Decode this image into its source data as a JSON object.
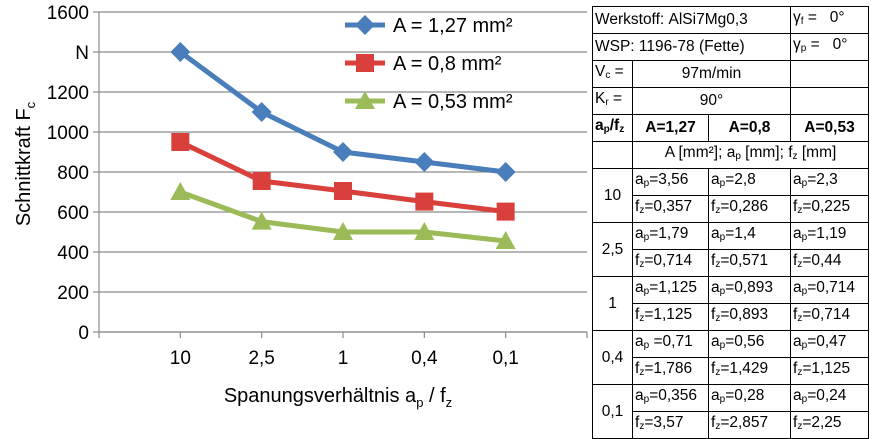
{
  "chart_data": {
    "type": "line",
    "categories": [
      "10",
      "2,5",
      "1",
      "0,4",
      "0,1"
    ],
    "series": [
      {
        "name": "A = 1,27 mm²",
        "values": [
          1400,
          1100,
          900,
          850,
          800
        ],
        "color": "#4a7ebb",
        "marker": "diamond"
      },
      {
        "name": "A = 0,8 mm²",
        "values": [
          950,
          755,
          705,
          652,
          602
        ],
        "color": "#d9403b",
        "marker": "square"
      },
      {
        "name": "A = 0,53 mm²",
        "values": [
          700,
          552,
          500,
          500,
          455
        ],
        "color": "#9bbb59",
        "marker": "triangle"
      }
    ],
    "title": "",
    "xlabel": "Spanungsverhältnis ap / fz",
    "ylabel": "Schnittkraft Fc",
    "y_ticks": [
      "0",
      "200",
      "400",
      "600",
      "800",
      "1000",
      "1200",
      "N",
      "1600"
    ],
    "ylim": [
      0,
      1600
    ],
    "grid": true,
    "legend_position": "top-right"
  },
  "table": {
    "werkstoff_label": "Werkstoff:",
    "werkstoff_value": "AlSi7Mg0,3",
    "gamma_f": "γf =",
    "gamma_f_value": "0°",
    "wsp_label": "WSP:",
    "wsp_value": "1196-78 (Fette)",
    "gamma_p": "γp =",
    "gamma_p_value": "0°",
    "vc_label": "Vc =",
    "vc_value": "97m/min",
    "kr_label": "Kr =",
    "kr_value": "90°",
    "col_ratio": "ap/fz",
    "col_a1": "A=1,27",
    "col_a2": "A=0,8",
    "col_a3": "A=0,53",
    "units": "A [mm²]; ap [mm]; fz [mm]",
    "rows": [
      {
        "ratio": "10",
        "ap": [
          "ap=3,56",
          "ap=2,8",
          "ap=2,3"
        ],
        "fz": [
          "fz=0,357",
          "fz=0,286",
          "fz=0,225"
        ]
      },
      {
        "ratio": "2,5",
        "ap": [
          "ap=1,79",
          "ap=1,4",
          "ap=1,19"
        ],
        "fz": [
          "fz=0,714",
          "fz=0,571",
          "fz=0,44"
        ]
      },
      {
        "ratio": "1",
        "ap": [
          "ap=1,125",
          "ap=0,893",
          "ap=0,714"
        ],
        "fz": [
          "fz=1,125",
          "fz=0,893",
          "fz=0,714"
        ]
      },
      {
        "ratio": "0,4",
        "ap": [
          "ap =0,71",
          "ap=0,56",
          "ap=0,47"
        ],
        "fz": [
          "fz=1,786",
          "fz=1,429",
          "fz=1,125"
        ]
      },
      {
        "ratio": "0,1",
        "ap": [
          "ap=0,356",
          "ap=0,28",
          "ap=0,24"
        ],
        "fz": [
          "fz=3,57",
          "fz=2,857",
          "fz=2,25"
        ]
      }
    ]
  }
}
